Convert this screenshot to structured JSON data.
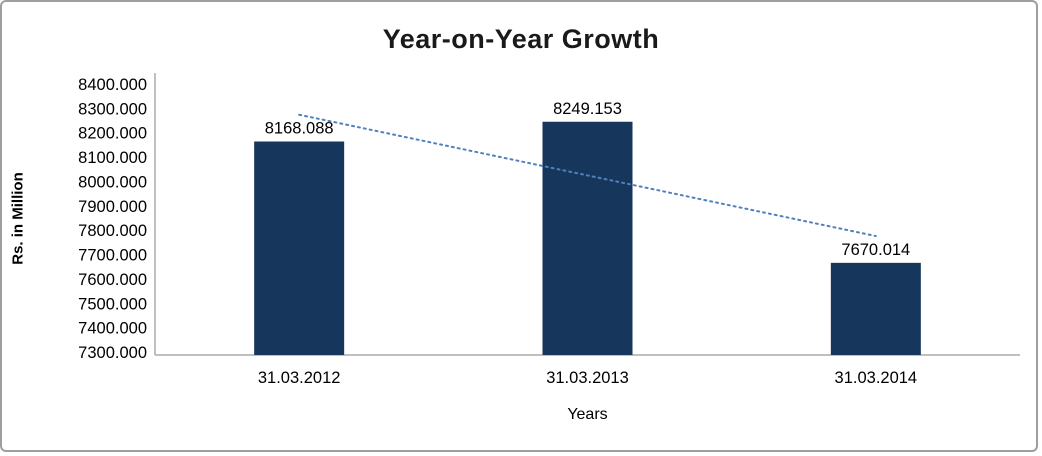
{
  "chart_data": {
    "type": "bar",
    "title": "Year-on-Year Growth",
    "xlabel": "Years",
    "ylabel": "Rs. in Million",
    "categories": [
      "31.03.2012",
      "31.03.2013",
      "31.03.2014"
    ],
    "values": [
      8168.088,
      8249.153,
      7670.014
    ],
    "value_labels": [
      "8168.088",
      "8249.153",
      "7670.014"
    ],
    "ylim": [
      7300,
      8400
    ],
    "ytick_step": 100,
    "ytick_labels": [
      "8400.000",
      "8300.000",
      "8200.000",
      "8100.000",
      "8000.000",
      "7900.000",
      "7800.000",
      "7700.000",
      "7600.000",
      "7500.000",
      "7400.000",
      "7300.000"
    ],
    "grid": false,
    "legend": "none",
    "bar_color": "#16365C",
    "trendline": {
      "type": "linear",
      "style": "dotted",
      "color": "#4F81BD",
      "y_start": 8278,
      "y_end": 7780
    },
    "axis_color": "#ababab",
    "text_color": "#000000"
  }
}
